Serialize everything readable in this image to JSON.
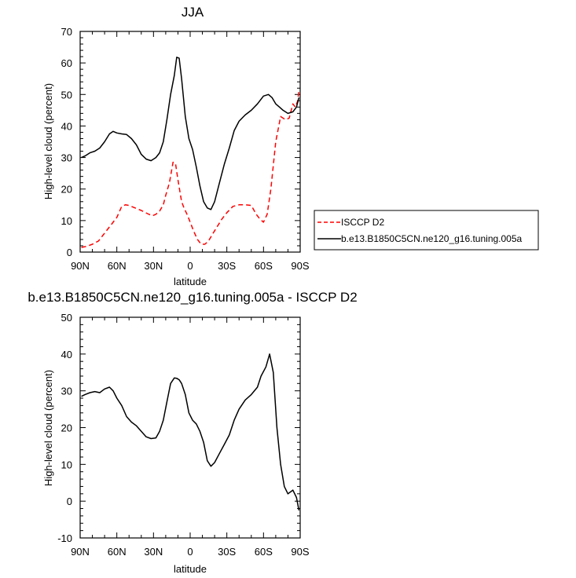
{
  "chart_data": [
    {
      "type": "line",
      "title": "JJA",
      "xlabel": "latitude",
      "ylabel": "High-level cloud (percent)",
      "xlim": [
        90,
        -90
      ],
      "ylim": [
        0,
        70
      ],
      "xticks": [
        90,
        60,
        30,
        0,
        -30,
        -60,
        -90
      ],
      "xtick_labels": [
        "90N",
        "60N",
        "30N",
        "0",
        "30S",
        "60S",
        "90S"
      ],
      "yticks": [
        0,
        10,
        20,
        30,
        40,
        50,
        60,
        70
      ],
      "ytick_labels": [
        "0",
        "10",
        "20",
        "30",
        "40",
        "50",
        "60",
        "70"
      ],
      "grid": false,
      "legend_position": "right",
      "series": [
        {
          "name": "ISCCP D2",
          "color": "#ff0000",
          "style": "dashed",
          "x": [
            89,
            85,
            80,
            75,
            70,
            65,
            60,
            56,
            53,
            50,
            45,
            40,
            35,
            31,
            28,
            25,
            22,
            20,
            17,
            14,
            12,
            10,
            7,
            5,
            2,
            0,
            -3,
            -6,
            -9,
            -12,
            -15,
            -18,
            -22,
            -26,
            -30,
            -35,
            -40,
            -45,
            -50,
            -54,
            -57,
            -60,
            -63,
            -66,
            -70,
            -74,
            -78,
            -81,
            -84,
            -86,
            -88,
            -89
          ],
          "y": [
            1.5,
            1.8,
            2.5,
            3.5,
            6,
            8.5,
            11,
            14.5,
            15,
            14.8,
            14,
            13.2,
            12.2,
            11.5,
            12,
            13,
            15,
            18,
            22,
            28.5,
            28.2,
            23,
            16,
            14,
            11.5,
            9.5,
            6.5,
            4,
            2.5,
            2.5,
            3.5,
            5.5,
            8,
            10.5,
            12.5,
            14.5,
            15,
            15,
            14.8,
            12,
            10.5,
            9.5,
            12,
            20,
            35,
            43,
            42,
            42.5,
            47,
            46,
            48,
            51.5
          ]
        },
        {
          "name": "b.e13.B1850C5CN.ne120_g16.tuning.005a",
          "color": "#000000",
          "style": "solid",
          "x": [
            89,
            86,
            82,
            78,
            74,
            70,
            66,
            63,
            60,
            56,
            52,
            48,
            44,
            40,
            36,
            32,
            28,
            25,
            22,
            19,
            16,
            13,
            11,
            9,
            7,
            4,
            1,
            -2,
            -5,
            -8,
            -11,
            -14,
            -17,
            -20,
            -24,
            -28,
            -32,
            -36,
            -40,
            -45,
            -50,
            -55,
            -60,
            -64,
            -67,
            -70,
            -73,
            -76,
            -80,
            -84,
            -87,
            -89
          ],
          "y": [
            30,
            30.5,
            31.5,
            32,
            33,
            35,
            37.5,
            38.3,
            37.8,
            37.5,
            37.3,
            36,
            34,
            31,
            29.5,
            29,
            30,
            31.5,
            35,
            42,
            50,
            56,
            61.8,
            61.5,
            55,
            43,
            36,
            32.5,
            27,
            21,
            16,
            14,
            13.5,
            16,
            22,
            28,
            33,
            38.5,
            41.5,
            43.5,
            45,
            47,
            49.5,
            50,
            49,
            47,
            46,
            45,
            44,
            44.5,
            46,
            49
          ]
        }
      ]
    },
    {
      "type": "line",
      "title": "b.e13.B1850C5CN.ne120_g16.tuning.005a - ISCCP D2",
      "xlabel": "latitude",
      "ylabel": "High-level cloud (percent)",
      "xlim": [
        90,
        -90
      ],
      "ylim": [
        -10,
        50
      ],
      "xticks": [
        90,
        60,
        30,
        0,
        -30,
        -60,
        -90
      ],
      "xtick_labels": [
        "90N",
        "60N",
        "30N",
        "0",
        "30S",
        "60S",
        "90S"
      ],
      "yticks": [
        -10,
        0,
        10,
        20,
        30,
        40,
        50
      ],
      "ytick_labels": [
        "-10",
        "0",
        "10",
        "20",
        "30",
        "40",
        "50"
      ],
      "grid": false,
      "series": [
        {
          "color": "#000000",
          "style": "solid",
          "x": [
            89,
            86,
            82,
            78,
            74,
            70,
            66,
            63,
            60,
            56,
            52,
            48,
            44,
            40,
            36,
            32,
            28,
            25,
            22,
            19,
            16,
            13,
            11,
            9,
            7,
            4,
            1,
            -2,
            -5,
            -8,
            -11,
            -14,
            -17,
            -20,
            -24,
            -28,
            -32,
            -36,
            -40,
            -45,
            -50,
            -55,
            -58,
            -62,
            -65,
            -68,
            -71,
            -74,
            -77,
            -80,
            -84,
            -87,
            -89
          ],
          "y": [
            28.5,
            29,
            29.5,
            29.8,
            29.5,
            30.5,
            31,
            30,
            28,
            26,
            23,
            21.5,
            20.5,
            19,
            17.5,
            17,
            17.2,
            19,
            22,
            27,
            32,
            33.5,
            33.4,
            33,
            32,
            29,
            24,
            22,
            21,
            19,
            16,
            11,
            9.5,
            10.5,
            13,
            15.5,
            18,
            22,
            25,
            27.5,
            29,
            31,
            34,
            36.5,
            40,
            35,
            20,
            10,
            4,
            2,
            3,
            1,
            -2.5
          ]
        }
      ]
    }
  ]
}
